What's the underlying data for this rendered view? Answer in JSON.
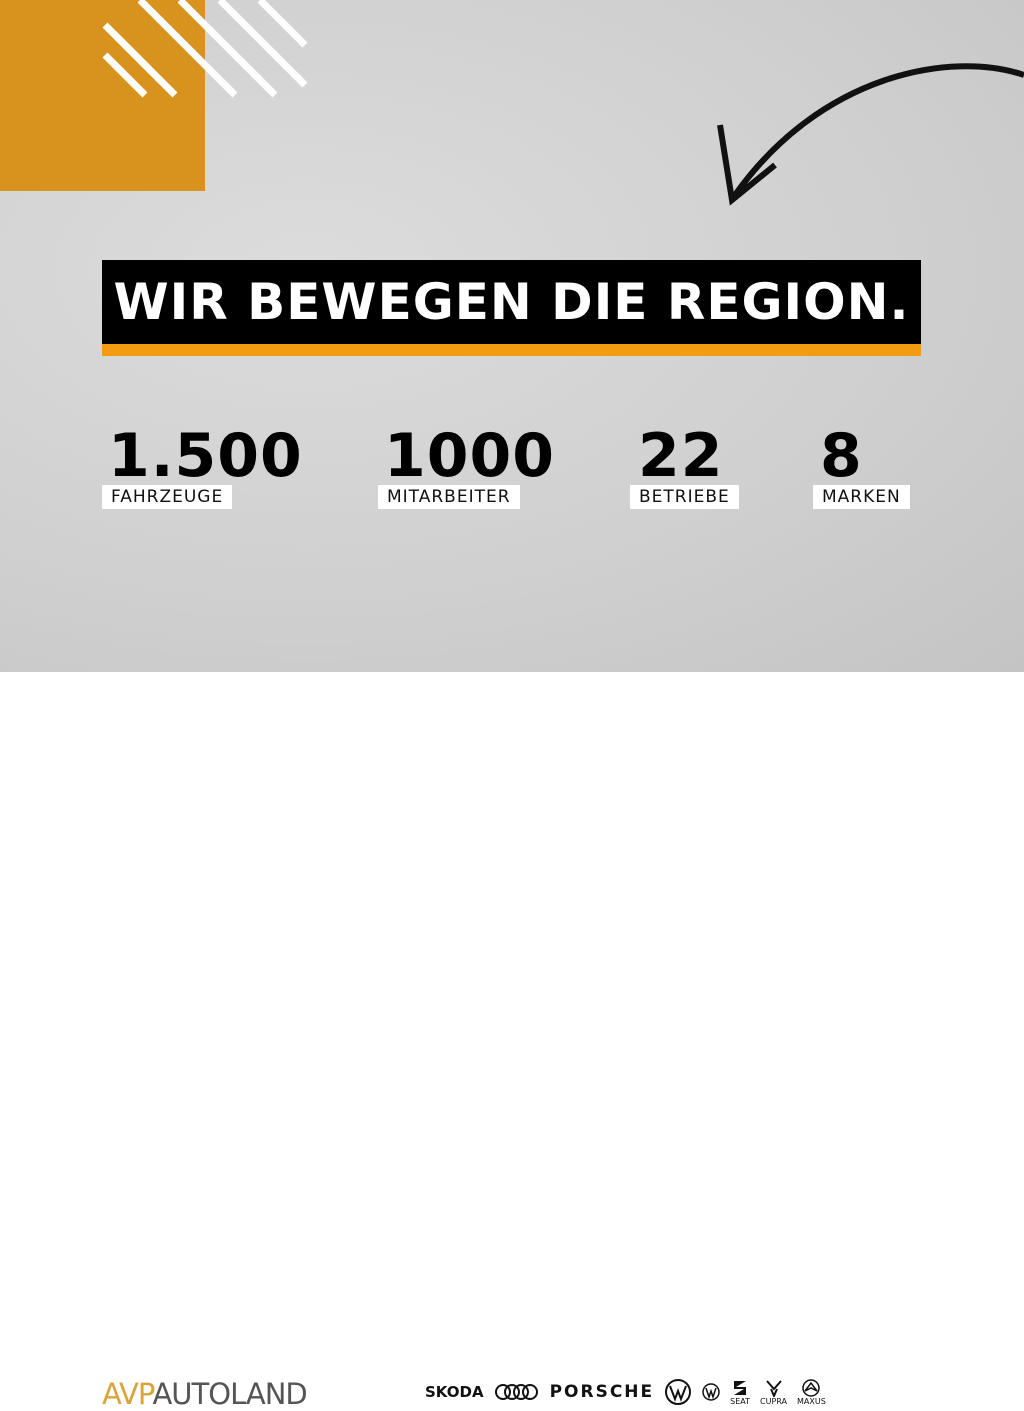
{
  "headline": "WIR BEWEGEN DIE REGION.",
  "stats": [
    {
      "value": "1.500",
      "label": "FAHRZEUGE"
    },
    {
      "value": "1000",
      "label": "MITARBEITER"
    },
    {
      "value": "22",
      "label": "BETRIEBE"
    },
    {
      "value": "8",
      "label": "MARKEN"
    }
  ],
  "footer": {
    "logo_part1": "AVP",
    "logo_part2": "AUTOLAND",
    "brands": [
      "SKODA",
      "Audi",
      "PORSCHE",
      "Volkswagen",
      "Volkswagen Nutzfahrzeuge",
      "SEAT",
      "CUPRA",
      "MAXUS"
    ],
    "brand_labels": {
      "seat": "SEAT",
      "cupra": "CUPRA",
      "maxus": "MAXUS",
      "skoda": "SKODA",
      "porsche": "PORSCHE"
    }
  },
  "colors": {
    "accent": "#f39c12",
    "orange_block": "#d8921e",
    "logo_gold": "#d9a437"
  }
}
